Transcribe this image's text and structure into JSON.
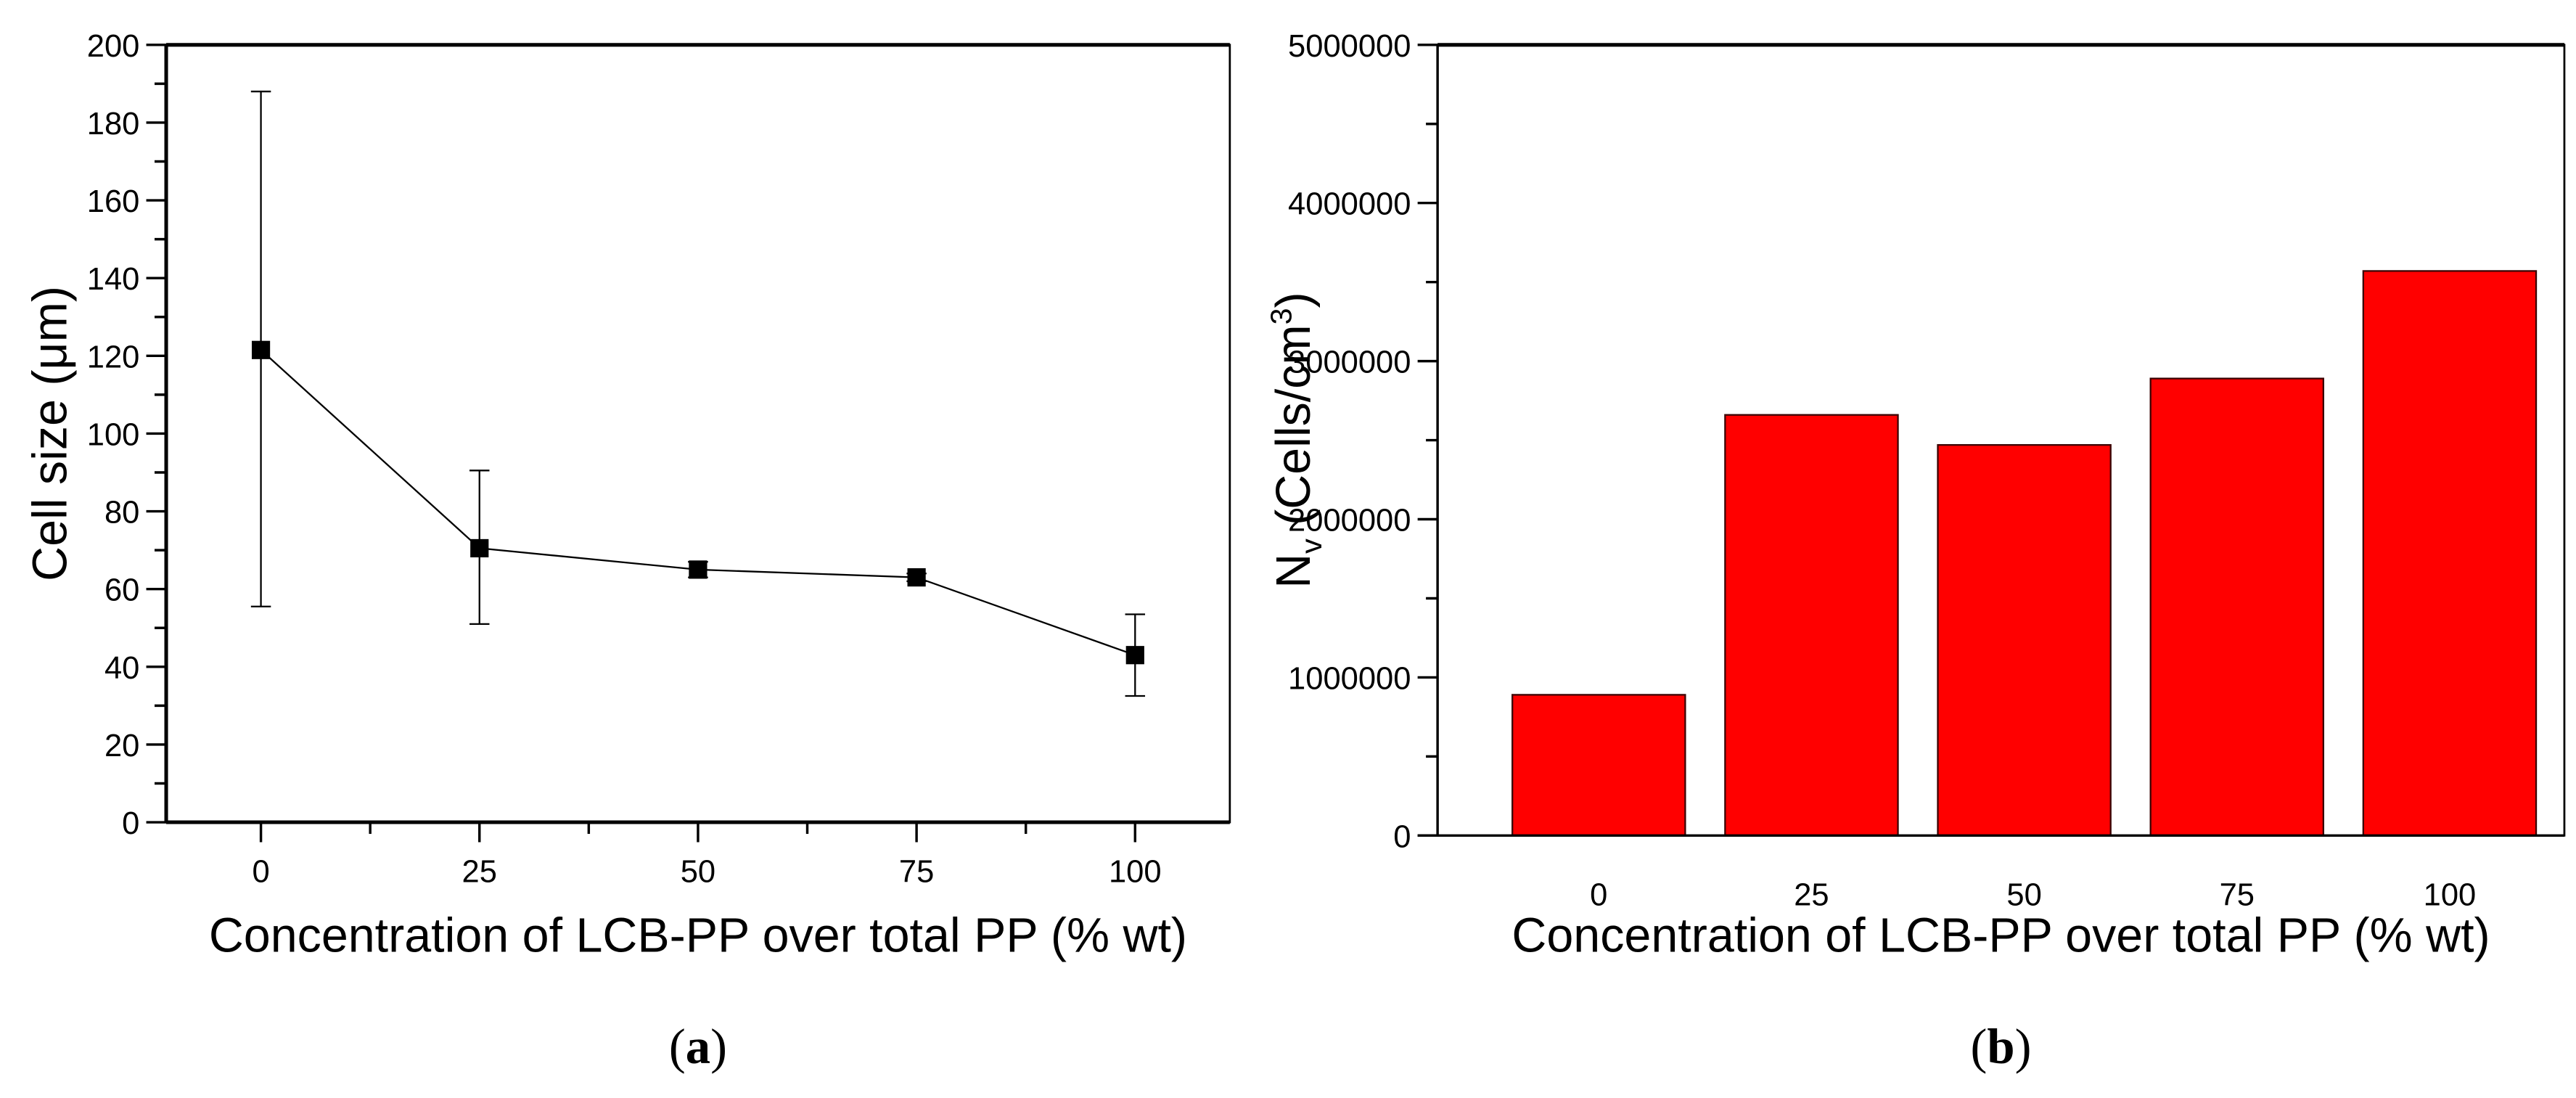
{
  "figure": {
    "panel_a_label": "a",
    "panel_b_label": "b"
  },
  "chart_data": [
    {
      "type": "line",
      "panel": "a",
      "title": "",
      "xlabel": "Concentration of LCB-PP over total PP (% wt)",
      "ylabel": "Cell size (μm)",
      "x": [
        0,
        25,
        50,
        75,
        100
      ],
      "x_tick_labels": [
        "0",
        "25",
        "50",
        "75",
        "100"
      ],
      "y_ticks": [
        0,
        20,
        40,
        60,
        80,
        100,
        120,
        140,
        160,
        180,
        200
      ],
      "ylim": [
        0,
        200
      ],
      "xlim": [
        -12.5,
        110
      ],
      "grid": false,
      "legend": null,
      "series": [
        {
          "name": "Cell size",
          "marker": "square",
          "color": "#000000",
          "values": [
            121.5,
            70.5,
            65,
            63,
            43
          ],
          "error_low": [
            55.5,
            51,
            63,
            62,
            32.5
          ],
          "error_high": [
            188,
            90.5,
            67,
            64,
            53.5
          ]
        }
      ]
    },
    {
      "type": "bar",
      "panel": "b",
      "title": "",
      "xlabel": "Concentration of LCB-PP over total PP (% wt)",
      "ylabel": "N_v (Cells/cm^3)",
      "ylabel_parts": {
        "main": "N",
        "sub": "v",
        "unit_open": " (Cells/cm",
        "sup": "3",
        "unit_close": ")"
      },
      "categories": [
        "0",
        "25",
        "50",
        "75",
        "100"
      ],
      "y_ticks": [
        0,
        1000000,
        2000000,
        3000000,
        4000000,
        5000000
      ],
      "y_tick_labels": [
        "0",
        "1000000",
        "2000000",
        "3000000",
        "4000000",
        "5000000"
      ],
      "ylim": [
        0,
        5000000
      ],
      "grid": false,
      "legend": null,
      "bar_color": "#ff0000",
      "values": [
        890000,
        2660000,
        2470000,
        2890000,
        3570000
      ]
    }
  ]
}
